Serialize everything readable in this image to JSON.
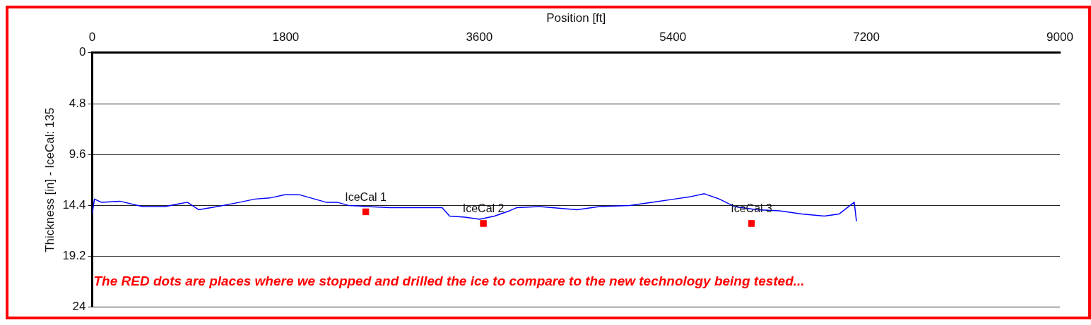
{
  "chart_data": {
    "type": "line",
    "xlabel": "Position [ft]",
    "ylabel": "Thickness [in] - IceCal: 135",
    "xlim": [
      0,
      9000
    ],
    "xticks": [
      0,
      1800,
      3600,
      5400,
      7200,
      9000
    ],
    "ylim": [
      24,
      0
    ],
    "yticks": [
      0,
      4.8,
      9.6,
      14.4,
      19.2,
      24
    ],
    "grid": "y",
    "legend": false,
    "series": [
      {
        "type": "line",
        "color": "#0000ff",
        "marker": "none",
        "x": [
          0,
          21,
          84,
          258,
          467,
          676,
          885,
          990,
          1164,
          1373,
          1512,
          1652,
          1791,
          1931,
          2070,
          2174,
          2279,
          2383,
          2557,
          2767,
          3045,
          3254,
          3324,
          3463,
          3603,
          3742,
          3882,
          3951,
          4160,
          4509,
          4718,
          4997,
          5206,
          5415,
          5554,
          5693,
          5833,
          5972,
          6181,
          6390,
          6599,
          6808,
          6948,
          7087,
          7108
        ],
        "values": [
          15.2,
          13.8,
          14.1,
          14.0,
          14.5,
          14.5,
          14.1,
          14.8,
          14.5,
          14.1,
          13.8,
          13.7,
          13.4,
          13.4,
          13.8,
          14.1,
          14.1,
          14.4,
          14.5,
          14.6,
          14.6,
          14.6,
          15.4,
          15.5,
          15.7,
          15.4,
          14.9,
          14.6,
          14.5,
          14.8,
          14.5,
          14.4,
          14.1,
          13.8,
          13.6,
          13.3,
          13.8,
          14.5,
          14.8,
          14.9,
          15.2,
          15.4,
          15.2,
          14.1,
          15.9
        ]
      },
      {
        "type": "scatter",
        "color": "#ff0000",
        "marker": "square",
        "x": [
          2544,
          3638,
          6132
        ],
        "values": [
          15.0,
          16.1,
          16.1
        ]
      }
    ],
    "annotations": [
      {
        "text": "IceCal 1",
        "x": 2544,
        "y": 15.0
      },
      {
        "text": "IceCal 2",
        "x": 3638,
        "y": 16.1
      },
      {
        "text": "IceCal 3",
        "x": 6132,
        "y": 16.1
      },
      "The RED dots are places where we stopped and drilled the ice to compare to the new technology being tested..."
    ]
  }
}
